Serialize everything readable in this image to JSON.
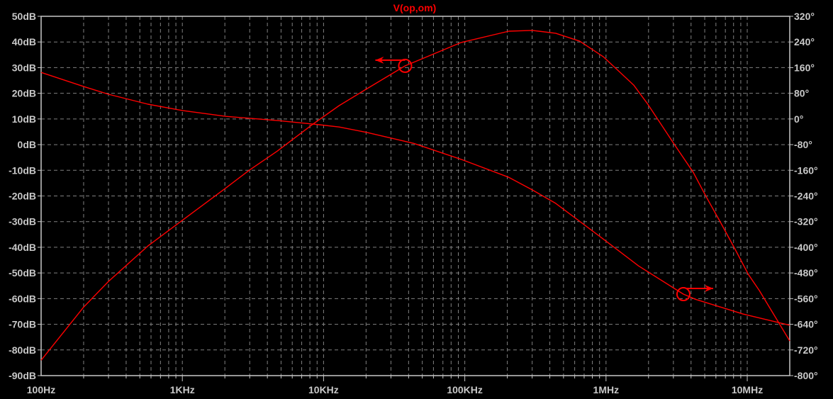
{
  "chart_data": {
    "type": "line",
    "title": "V(op,om)",
    "x_scale": "log",
    "xlim": [
      100,
      20000000
    ],
    "x_ticks": [
      {
        "value": 100,
        "label": "100Hz"
      },
      {
        "value": 1000,
        "label": "1KHz"
      },
      {
        "value": 10000,
        "label": "10KHz"
      },
      {
        "value": 100000,
        "label": "100KHz"
      },
      {
        "value": 1000000,
        "label": "1MHz"
      },
      {
        "value": 10000000,
        "label": "10MHz"
      }
    ],
    "y_left": {
      "ylim": [
        -90,
        50
      ],
      "ticks": [
        50,
        40,
        30,
        20,
        10,
        0,
        -10,
        -20,
        -30,
        -40,
        -50,
        -60,
        -70,
        -80,
        -90
      ],
      "labels": [
        "50dB",
        "40dB",
        "30dB",
        "20dB",
        "10dB",
        "0dB",
        "-10dB",
        "-20dB",
        "-30dB",
        "-40dB",
        "-50dB",
        "-60dB",
        "-70dB",
        "-80dB",
        "-90dB"
      ]
    },
    "y_right": {
      "ylim": [
        -800,
        320
      ],
      "ticks": [
        320,
        240,
        160,
        80,
        0,
        -80,
        -160,
        -240,
        -320,
        -400,
        -480,
        -560,
        -640,
        -720,
        -800
      ],
      "labels": [
        "320°",
        "240°",
        "160°",
        "80°",
        "0°",
        "-80°",
        "-160°",
        "-240°",
        "-320°",
        "-400°",
        "-480°",
        "-560°",
        "-640°",
        "-720°",
        "-800°"
      ]
    },
    "grid": true,
    "colors": {
      "background": "#000000",
      "grid": "#808080",
      "axis": "#c8c8c8",
      "trace": "#ff0000"
    },
    "series": [
      {
        "axis": "left",
        "unit": "dB",
        "x": [
          100,
          200,
          300,
          570,
          1010,
          2030,
          2970,
          4710,
          8420,
          12900,
          20300,
          37800,
          94400,
          205000,
          300000,
          440000,
          651000,
          955000,
          1570000,
          1980000,
          3030000,
          4150000,
          5110000,
          6440000,
          8120000,
          10200000,
          12200000,
          20000000
        ],
        "y": [
          -84,
          -63.3,
          -53.3,
          -39.5,
          -29.3,
          -16.9,
          -10,
          -2.5,
          8,
          15.2,
          21.8,
          30.7,
          39.8,
          44.2,
          44.5,
          43.4,
          40.3,
          34.3,
          23.2,
          15.7,
          0.3,
          -10.8,
          -20.2,
          -30.1,
          -40.3,
          -50.6,
          -56.9,
          -76.5
        ],
        "marker": {
          "x": 37800,
          "y": 30.7,
          "arrow": "left"
        }
      },
      {
        "axis": "right",
        "unit": "°",
        "x": [
          100,
          200,
          300,
          570,
          1010,
          2030,
          4710,
          8420,
          9330,
          12900,
          20300,
          43500,
          94400,
          205000,
          300000,
          440000,
          651000,
          955000,
          1700000,
          3530000,
          4300000,
          9330000,
          20000000
        ],
        "y": [
          145,
          101,
          77,
          46,
          26,
          8,
          -5,
          -16,
          -18,
          -25,
          -42,
          -76,
          -126,
          -182,
          -221,
          -263,
          -319,
          -374,
          -458,
          -546,
          -562,
          -608,
          -643
        ],
        "marker": {
          "x": 3530000,
          "y": -546,
          "arrow": "right"
        }
      }
    ]
  }
}
